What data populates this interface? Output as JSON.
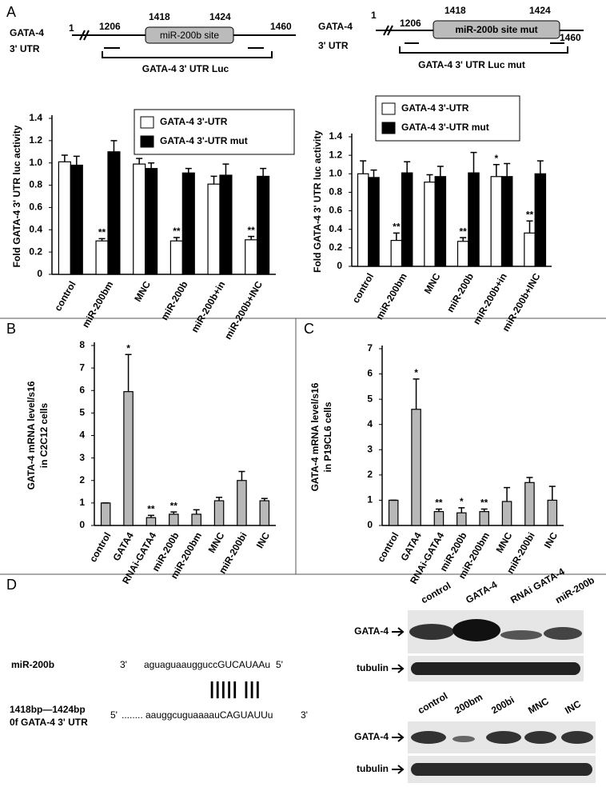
{
  "panel_labels": [
    "A",
    "B",
    "C",
    "D"
  ],
  "diagrams": [
    {
      "gene": "GATA-4",
      "region": "3' UTR",
      "start": "1",
      "pos1": "1206",
      "pos2": "1418",
      "pos3": "1424",
      "pos4": "1460",
      "site": "miR-200b site",
      "construct": "GATA-4 3' UTR Luc"
    },
    {
      "gene": "GATA-4",
      "region": "3' UTR",
      "start": "1",
      "pos1": "1206",
      "pos2": "1418",
      "pos3": "1424",
      "pos4": "1460",
      "site": "miR-200b site mut",
      "construct": "GATA-4 3' UTR  Luc   mut"
    }
  ],
  "chart_data": [
    {
      "type": "bar",
      "ylabel": "Fold GATA-4 3' UTR luc activity",
      "categories": [
        "control",
        "miR-200bm",
        "MNC",
        "miR-200b",
        "miR-200b+in",
        "miR-200b+INC"
      ],
      "series": [
        {
          "name": "GATA-4 3'-UTR",
          "color": "#ffffff",
          "values": [
            1.01,
            0.3,
            0.99,
            0.3,
            0.81,
            0.31
          ],
          "errors": [
            0.06,
            0.02,
            0.05,
            0.03,
            0.07,
            0.03
          ],
          "annotations": [
            null,
            "**",
            null,
            "**",
            null,
            "**"
          ]
        },
        {
          "name": "GATA-4 3'-UTR mut",
          "color": "#000000",
          "values": [
            0.98,
            1.1,
            0.95,
            0.91,
            0.89,
            0.88
          ],
          "errors": [
            0.08,
            0.1,
            0.05,
            0.04,
            0.1,
            0.07
          ],
          "annotations": [
            null,
            null,
            null,
            null,
            null,
            null
          ]
        }
      ],
      "ylim": [
        0,
        1.4
      ],
      "yticks": [
        0,
        0.2,
        0.4,
        0.6,
        0.8,
        {
          "value": 1,
          "label": "1.0"
        },
        1.2,
        1.4
      ]
    },
    {
      "type": "bar",
      "ylabel": "Fold GATA-4 3' UTR luc activity",
      "categories": [
        "control",
        "miR-200bm",
        "MNC",
        "miR-200b",
        "miR-200b+in",
        "miR-200b+INC"
      ],
      "series": [
        {
          "name": "GATA-4 3'-UTR",
          "color": "#ffffff",
          "values": [
            1.0,
            0.28,
            0.91,
            0.27,
            0.97,
            0.36
          ],
          "errors": [
            0.14,
            0.08,
            0.08,
            0.04,
            0.13,
            0.13
          ],
          "annotations": [
            null,
            "**",
            null,
            "**",
            "*",
            "**"
          ]
        },
        {
          "name": "GATA-4 3'-UTR mut",
          "color": "#000000",
          "values": [
            0.96,
            1.01,
            0.97,
            1.01,
            0.97,
            1.0
          ],
          "errors": [
            0.08,
            0.12,
            0.11,
            0.22,
            0.14,
            0.14
          ],
          "annotations": [
            null,
            null,
            null,
            null,
            null,
            null
          ]
        }
      ],
      "ylim": [
        0,
        1.4
      ],
      "yticks": [
        0,
        0.2,
        0.4,
        0.6,
        0.8,
        {
          "value": 1,
          "label": "1.0"
        },
        1.2,
        1.4
      ]
    },
    {
      "type": "bar",
      "ylabel": [
        "GATA-4 mRNA level/s16",
        "in C2C12 cells"
      ],
      "categories": [
        "control",
        "GATA4",
        "RNAi-GATA4",
        "miR-200b",
        "miR-200bm",
        "MNC",
        "miR-200bi",
        "INC"
      ],
      "series": [
        {
          "color": "#b8b8b8",
          "values": [
            1.0,
            5.95,
            0.35,
            0.5,
            0.5,
            1.1,
            2.0,
            1.1
          ],
          "errors": [
            0,
            1.65,
            0.1,
            0.1,
            0.2,
            0.15,
            0.4,
            0.1
          ],
          "annotations": [
            null,
            "*",
            "**",
            "**",
            null,
            null,
            null,
            null
          ]
        }
      ],
      "ylim": [
        0,
        8
      ],
      "yticks": [
        0,
        1,
        2,
        3,
        4,
        5,
        6,
        7,
        8
      ]
    },
    {
      "type": "bar",
      "ylabel": [
        "GATA-4 mRNA level/s16",
        "in P19CL6 cells"
      ],
      "categories": [
        "control",
        "GATA4",
        "RNAi-GATA4",
        "miR-200b",
        "miR-200bm",
        "MNC",
        "miR-200bi",
        "INC"
      ],
      "series": [
        {
          "color": "#b8b8b8",
          "values": [
            1.0,
            4.6,
            0.55,
            0.5,
            0.55,
            0.95,
            1.7,
            1.0
          ],
          "errors": [
            0,
            1.2,
            0.1,
            0.2,
            0.1,
            0.55,
            0.2,
            0.55
          ],
          "annotations": [
            null,
            "*",
            "**",
            "*",
            "**",
            null,
            null,
            null
          ]
        }
      ],
      "ylim": [
        0,
        7
      ],
      "yticks": [
        0,
        1,
        2,
        3,
        4,
        5,
        6,
        7
      ]
    }
  ],
  "alignment": {
    "mirna": "miR-200b",
    "mirna_end1": "3'",
    "mirna_seq": "aguaguaaugguccGUCAUAAu",
    "mirna_end2": "5'",
    "pairs": "||||| |||",
    "target_line1": "1418bp—1424bp",
    "target_line2": "0f GATA-4 3' UTR",
    "target_end1": "5'",
    "target_seq": "........ aauggcuguaaaauCAGUAUUu",
    "target_end2": "3'"
  },
  "blots": [
    {
      "lanes": [
        "control",
        "GATA-4",
        "RNAi GATA-4",
        "miR-200b"
      ],
      "rows": [
        "GATA-4",
        "tubulin"
      ]
    },
    {
      "lanes": [
        "control",
        "200bm",
        "200bi",
        "MNC",
        "INC"
      ],
      "rows": [
        "GATA-4",
        "tubulin"
      ]
    }
  ]
}
